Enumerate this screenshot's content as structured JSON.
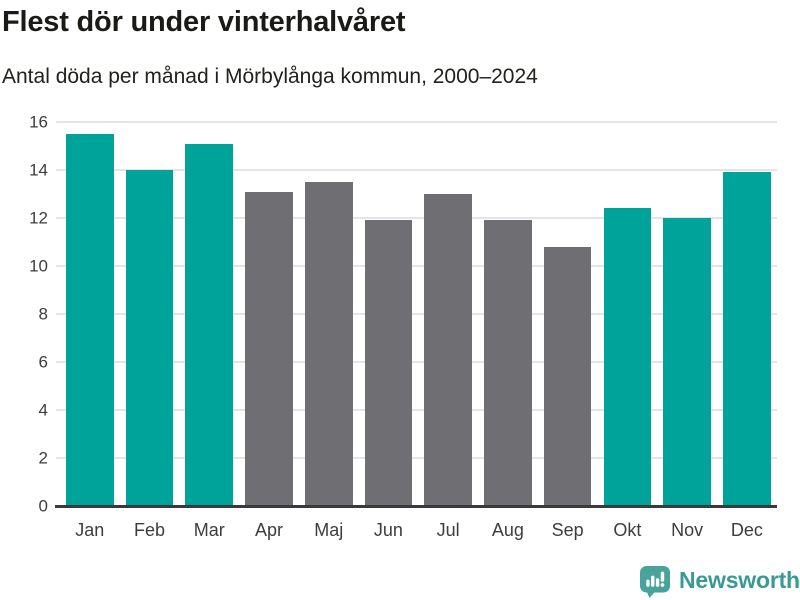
{
  "title": "Flest dör under vinterhalvåret",
  "subtitle": "Antal döda per månad i Mörbylånga kommun, 2000–2024",
  "footer": {
    "brand": "Newsworthy",
    "logo_icon": "newsworthy-speech-bubble-barchart-icon"
  },
  "colors": {
    "winter": "#00a39a",
    "summer": "#6e6e73",
    "grid": "#e4e4e6",
    "axis_line": "#3a3a3c",
    "axis_text": "#3d3d3d",
    "title_text": "#1a1a16",
    "brand_teal": "#399a94",
    "brand_icon_teal": "#48a39c"
  },
  "chart_data": {
    "type": "bar",
    "title": "Flest dör under vinterhalvåret",
    "subtitle": "Antal döda per månad i Mörbylånga kommun, 2000–2024",
    "categories": [
      "Jan",
      "Feb",
      "Mar",
      "Apr",
      "Maj",
      "Jun",
      "Jul",
      "Aug",
      "Sep",
      "Okt",
      "Nov",
      "Dec"
    ],
    "values": [
      15.5,
      14.0,
      15.1,
      13.1,
      13.5,
      11.9,
      13.0,
      11.9,
      10.8,
      12.4,
      12.0,
      13.9
    ],
    "bar_colors": [
      "winter",
      "winter",
      "winter",
      "summer",
      "summer",
      "summer",
      "summer",
      "summer",
      "summer",
      "winter",
      "winter",
      "winter"
    ],
    "xlabel": "",
    "ylabel": "",
    "ylim": [
      0,
      16
    ],
    "yticks": [
      0,
      2,
      4,
      6,
      8,
      10,
      12,
      14,
      16
    ],
    "grid": true,
    "legend": false
  }
}
